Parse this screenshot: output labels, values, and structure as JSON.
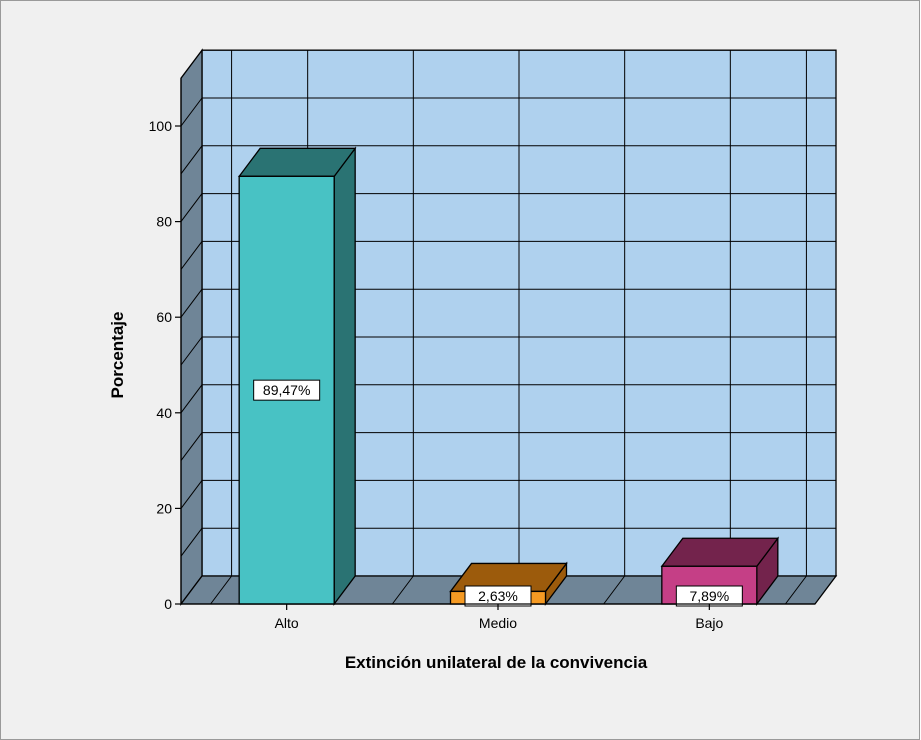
{
  "chart_data": {
    "type": "bar",
    "categories": [
      "Alto",
      "Medio",
      "Bajo"
    ],
    "values": [
      89.47,
      2.63,
      7.89
    ],
    "data_labels": [
      "89,47%",
      "2,63%",
      "7,89%"
    ],
    "xlabel": "Extinción unilateral de la convivencia",
    "ylabel": "Porcentaje",
    "ylim": [
      0,
      110
    ],
    "yticks": [
      0,
      20,
      40,
      60,
      80,
      100
    ],
    "grid": true,
    "colors": {
      "background": "#f0f0f0",
      "plot_wall": "#afd1ee",
      "plot_side": "#6f8597",
      "floor": "#6f8597",
      "bars": [
        {
          "front": "#48c2c4",
          "top": "#2a7373",
          "side": "#2a7373"
        },
        {
          "front": "#f59a23",
          "top": "#9c5b0c",
          "side": "#9c5b0c"
        },
        {
          "front": "#c53f86",
          "top": "#73234c",
          "side": "#73234c"
        }
      ]
    }
  }
}
